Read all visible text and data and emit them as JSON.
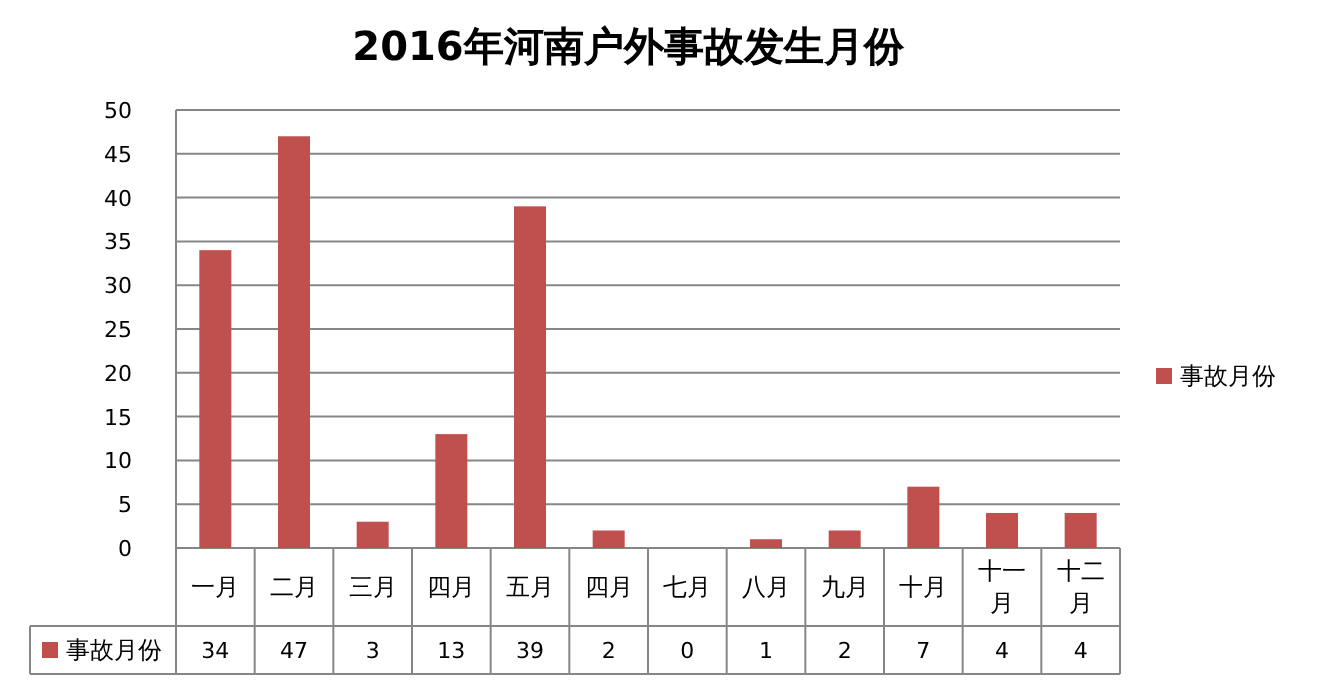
{
  "chart_data": {
    "type": "bar",
    "title": "2016年河南户外事故发生月份",
    "categories": [
      "一月",
      "二月",
      "三月",
      "四月",
      "五月",
      "四月",
      "七月",
      "八月",
      "九月",
      "十月",
      "十一月",
      "十二月"
    ],
    "series": [
      {
        "name": "事故月份",
        "color": "#c0504d",
        "values": [
          34,
          47,
          3,
          13,
          39,
          2,
          0,
          1,
          2,
          7,
          4,
          4
        ]
      }
    ],
    "ylim": [
      0,
      50
    ],
    "yticks": [
      0,
      5,
      10,
      15,
      20,
      25,
      30,
      35,
      40,
      45,
      50
    ],
    "grid": "y",
    "legend": "right",
    "data_labels": true
  }
}
